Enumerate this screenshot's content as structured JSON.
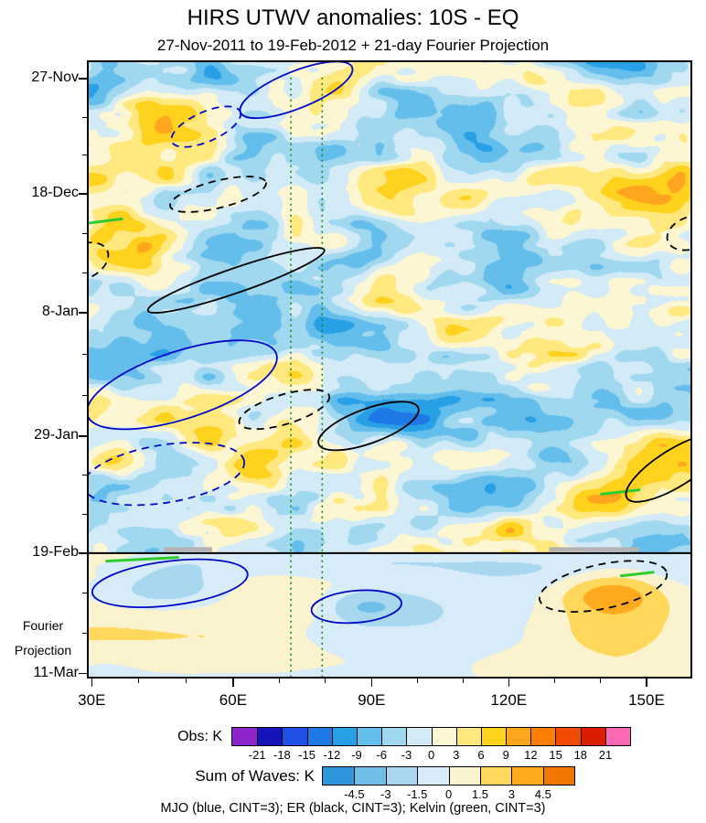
{
  "title": "HIRS UTWV anomalies: 10S - EQ",
  "subtitle": "27-Nov-2011 to 19-Feb-2012 + 21-day Fourier Projection",
  "projection_label": "Fourier\nProjection",
  "legend_note": "MJO (blue, CINT=3); ER (black, CINT=3); Kelvin (green, CINT=3)",
  "chart_data": {
    "type": "heatmap",
    "title": "HIRS UTWV anomalies: 10S - EQ",
    "subtitle": "27-Nov-2011 to 19-Feb-2012 + 21-day Fourier Projection",
    "x_axis": {
      "ticks": [
        {
          "label": "30E",
          "pos": 0.005
        },
        {
          "label": "60E",
          "pos": 0.24
        },
        {
          "label": "90E",
          "pos": 0.47
        },
        {
          "label": "120E",
          "pos": 0.698
        },
        {
          "label": "150E",
          "pos": 0.927
        }
      ]
    },
    "y_axis": {
      "ticks": [
        {
          "label": "27-Nov",
          "pos": 0.027
        },
        {
          "label": "18-Dec",
          "pos": 0.214
        },
        {
          "label": "8-Jan",
          "pos": 0.408
        },
        {
          "label": "29-Jan",
          "pos": 0.609
        },
        {
          "label": "19-Feb",
          "pos": 0.799
        },
        {
          "label": "11-Mar",
          "pos": 0.995
        }
      ],
      "annotation": "Fourier Projection"
    },
    "obs_colorbar": {
      "label": "Obs: K",
      "tick_labels": [
        "-21",
        "-18",
        "-15",
        "-12",
        "-9",
        "-6",
        "-3",
        "0",
        "3",
        "6",
        "9",
        "12",
        "15",
        "18",
        "21"
      ],
      "colors": [
        "#8E24C9",
        "#1414B8",
        "#1E50E6",
        "#1E78E6",
        "#28A0E6",
        "#64BEEB",
        "#A0D8F0",
        "#D2EBF7",
        "#FDF6D2",
        "#FFE87D",
        "#FFD21E",
        "#FFA51E",
        "#FF7D00",
        "#F04B00",
        "#DC1E00",
        "#FF69B4"
      ]
    },
    "waves_colorbar": {
      "label": "Sum of Waves: K",
      "tick_labels": [
        "-4.5",
        "-3",
        "-1.5",
        "0",
        "1.5",
        "3",
        "4.5"
      ],
      "colors": [
        "#2E96DC",
        "#6EBEE6",
        "#A8D8F0",
        "#D7ECF8",
        "#FBF3CE",
        "#FFD75A",
        "#FFAA1E",
        "#F07800"
      ]
    },
    "separator_y": 0.799,
    "contours": {
      "mjo": {
        "color": "#0008C8",
        "cint": 3,
        "label": "MJO (blue, CINT=3)"
      },
      "er": {
        "color": "#000000",
        "cint": 3,
        "label": "ER (black, CINT=3)"
      },
      "kelvin": {
        "color": "#2ECC2E",
        "dotted_color": "#128712",
        "cint": 3,
        "label": "Kelvin (green, CINT=3)"
      }
    },
    "kelvin_dotted_verticals": [
      0.336,
      0.388
    ],
    "kelvin_segments": [
      {
        "x1": 0.0,
        "y1": 0.262,
        "x2": 0.055,
        "y2": 0.255
      },
      {
        "x1": 0.852,
        "y1": 0.703,
        "x2": 0.915,
        "y2": 0.696
      },
      {
        "x1": 0.03,
        "y1": 0.812,
        "x2": 0.148,
        "y2": 0.806
      },
      {
        "x1": 0.885,
        "y1": 0.836,
        "x2": 0.938,
        "y2": 0.83
      }
    ],
    "gray_segments": [
      {
        "x1": 0.125,
        "y1": 0.793,
        "x2": 0.205,
        "y2": 0.793
      },
      {
        "x1": 0.765,
        "y1": 0.793,
        "x2": 0.915,
        "y2": 0.793
      }
    ],
    "ellipses": [
      {
        "cx": 0.345,
        "cy": 0.045,
        "rx": 0.1,
        "ry": 0.03,
        "rot": -22,
        "wave": "mjo",
        "style": "solid"
      },
      {
        "cx": 0.195,
        "cy": 0.105,
        "rx": 0.062,
        "ry": 0.024,
        "rot": -24,
        "wave": "mjo",
        "style": "dashed"
      },
      {
        "cx": 0.215,
        "cy": 0.215,
        "rx": 0.082,
        "ry": 0.022,
        "rot": -14,
        "wave": "er",
        "style": "dashed"
      },
      {
        "cx": -0.01,
        "cy": 0.325,
        "rx": 0.045,
        "ry": 0.028,
        "rot": -25,
        "wave": "er",
        "style": "dashed"
      },
      {
        "cx": 0.245,
        "cy": 0.355,
        "rx": 0.155,
        "ry": 0.02,
        "rot": -19,
        "wave": "er",
        "style": "solid"
      },
      {
        "cx": 0.155,
        "cy": 0.525,
        "rx": 0.165,
        "ry": 0.055,
        "rot": -18,
        "wave": "mjo",
        "style": "solid"
      },
      {
        "cx": 0.325,
        "cy": 0.565,
        "rx": 0.078,
        "ry": 0.024,
        "rot": -17,
        "wave": "er",
        "style": "dashed"
      },
      {
        "cx": 0.465,
        "cy": 0.592,
        "rx": 0.088,
        "ry": 0.028,
        "rot": -20,
        "wave": "er",
        "style": "solid"
      },
      {
        "cx": 0.125,
        "cy": 0.67,
        "rx": 0.135,
        "ry": 0.047,
        "rot": -9,
        "wave": "mjo",
        "style": "dashed"
      },
      {
        "cx": 0.975,
        "cy": 0.66,
        "rx": 0.095,
        "ry": 0.03,
        "rot": -32,
        "wave": "er",
        "style": "solid"
      },
      {
        "cx": 1.0,
        "cy": 0.278,
        "rx": 0.04,
        "ry": 0.026,
        "rot": -20,
        "wave": "er",
        "style": "dashed"
      },
      {
        "cx": 0.135,
        "cy": 0.848,
        "rx": 0.13,
        "ry": 0.036,
        "rot": -7,
        "wave": "mjo",
        "style": "solid"
      },
      {
        "cx": 0.445,
        "cy": 0.886,
        "rx": 0.075,
        "ry": 0.026,
        "rot": -5,
        "wave": "mjo",
        "style": "solid"
      },
      {
        "cx": 0.855,
        "cy": 0.853,
        "rx": 0.108,
        "ry": 0.036,
        "rot": -12,
        "wave": "er",
        "style": "dashed"
      }
    ]
  }
}
